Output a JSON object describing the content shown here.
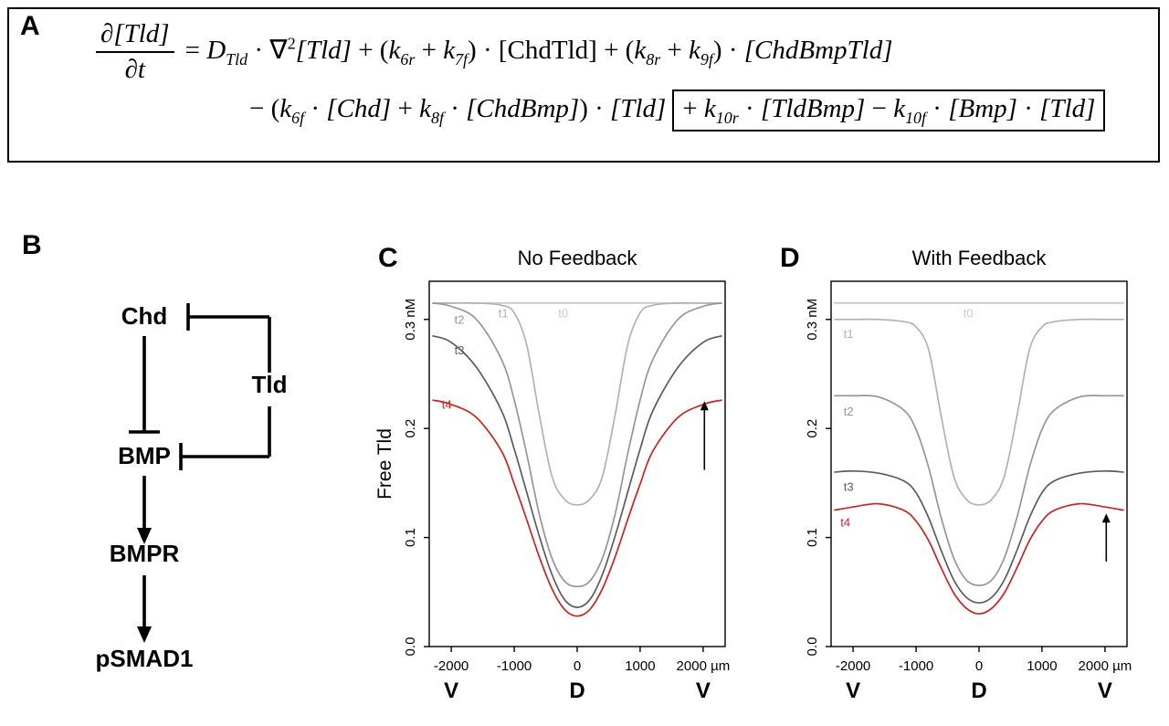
{
  "panels": {
    "a": {
      "label": "A",
      "equation": {
        "frac_num": "∂[Tld]",
        "frac_den": "∂t",
        "line1": [
          {
            "t": "= ",
            "i": false
          },
          {
            "t": "D",
            "sub": "Tld",
            "i": true
          },
          {
            "t": " · ∇",
            "sup": "2",
            "i": false
          },
          {
            "t": "[Tld]",
            "i": true
          },
          {
            "t": " + (",
            "i": false
          },
          {
            "t": "k",
            "sub": "6r",
            "i": true
          },
          {
            "t": " + ",
            "i": false
          },
          {
            "t": "k",
            "sub": "7f",
            "i": true
          },
          {
            "t": ") · ",
            "i": false
          },
          {
            "t": "[ChdTld]",
            "i": false
          },
          {
            "t": " + (",
            "i": false
          },
          {
            "t": "k",
            "sub": "8r",
            "i": true
          },
          {
            "t": " + ",
            "i": false
          },
          {
            "t": "k",
            "sub": "9f",
            "i": true
          },
          {
            "t": ") · ",
            "i": false
          },
          {
            "t": "[ChdBmpTld]",
            "i": true
          }
        ],
        "line2_prefix": [
          {
            "t": "− (",
            "i": false
          },
          {
            "t": "k",
            "sub": "6f",
            "i": true
          },
          {
            "t": " · ",
            "i": false
          },
          {
            "t": "[Chd]",
            "i": true
          },
          {
            "t": " + ",
            "i": false
          },
          {
            "t": "k",
            "sub": "8f",
            "i": true
          },
          {
            "t": " · ",
            "i": false
          },
          {
            "t": "[ChdBmp]",
            "i": true
          },
          {
            "t": ") · ",
            "i": false
          },
          {
            "t": "[Tld]",
            "i": true
          }
        ],
        "line2_boxed": [
          {
            "t": "+ ",
            "i": false
          },
          {
            "t": "k",
            "sub": "10r",
            "i": true
          },
          {
            "t": " · ",
            "i": false
          },
          {
            "t": "[TldBmp]",
            "i": true
          },
          {
            "t": " − ",
            "i": false
          },
          {
            "t": "k",
            "sub": "10f",
            "i": true
          },
          {
            "t": " · ",
            "i": false
          },
          {
            "t": "[Bmp]",
            "i": true
          },
          {
            "t": " · ",
            "i": false
          },
          {
            "t": "[Tld]",
            "i": true
          }
        ]
      }
    },
    "b": {
      "label": "B",
      "nodes": {
        "chd": "Chd",
        "tld": "Tld",
        "bmp": "BMP",
        "bmpr": "BMPR",
        "psmad1": "pSMAD1"
      }
    }
  },
  "chart_data": [
    {
      "id": "C",
      "type": "line",
      "panel_label": "C",
      "title": "No Feedback",
      "ylabel": "Free Tld",
      "xlabel": "",
      "grid": false,
      "legend_position": "inline-curve-labels",
      "xlim": [
        -2350,
        2350
      ],
      "ylim": [
        0,
        0.335
      ],
      "x_ticks": [
        {
          "v": -2000,
          "label": "-2000"
        },
        {
          "v": -1000,
          "label": "-1000"
        },
        {
          "v": 0,
          "label": "0"
        },
        {
          "v": 1000,
          "label": "1000"
        },
        {
          "v": 2000,
          "label": "2000 µm"
        }
      ],
      "y_ticks": [
        {
          "v": 0.0,
          "label": "0.0"
        },
        {
          "v": 0.1,
          "label": "0.1"
        },
        {
          "v": 0.2,
          "label": "0.2"
        },
        {
          "v": 0.3,
          "label": "0.3 nM"
        }
      ],
      "axis_letters": [
        {
          "v": -2000,
          "label": "V"
        },
        {
          "v": 0,
          "label": "D"
        },
        {
          "v": 2000,
          "label": "V"
        }
      ],
      "x": [
        -2300,
        -2000,
        -1600,
        -1200,
        -1000,
        -800,
        -600,
        -400,
        -200,
        0,
        200,
        400,
        600,
        800,
        1000,
        1200,
        1600,
        2000,
        2300
      ],
      "series": [
        {
          "name": "t0",
          "color": "#c9c9c9",
          "label_x": -300,
          "label_y": 0.302,
          "values": [
            0.315,
            0.315,
            0.315,
            0.315,
            0.315,
            0.315,
            0.315,
            0.315,
            0.315,
            0.315,
            0.315,
            0.315,
            0.315,
            0.315,
            0.315,
            0.315,
            0.315,
            0.315,
            0.315
          ]
        },
        {
          "name": "t1",
          "color": "#b2b2b2",
          "label_x": -1250,
          "label_y": 0.302,
          "values": [
            0.315,
            0.315,
            0.315,
            0.313,
            0.306,
            0.276,
            0.212,
            0.156,
            0.135,
            0.13,
            0.135,
            0.156,
            0.212,
            0.276,
            0.306,
            0.313,
            0.315,
            0.315,
            0.315
          ]
        },
        {
          "name": "t2",
          "color": "#969696",
          "label_x": -1950,
          "label_y": 0.296,
          "values": [
            0.315,
            0.312,
            0.3,
            0.263,
            0.226,
            0.176,
            0.121,
            0.081,
            0.06,
            0.055,
            0.06,
            0.081,
            0.121,
            0.176,
            0.226,
            0.263,
            0.3,
            0.312,
            0.315
          ]
        },
        {
          "name": "t3",
          "color": "#5c5c5c",
          "label_x": -1950,
          "label_y": 0.268,
          "values": [
            0.285,
            0.279,
            0.256,
            0.216,
            0.181,
            0.141,
            0.101,
            0.066,
            0.043,
            0.036,
            0.043,
            0.066,
            0.101,
            0.141,
            0.181,
            0.216,
            0.256,
            0.279,
            0.285
          ]
        },
        {
          "name": "t4",
          "color": "#cc2222",
          "label_x": -2150,
          "label_y": 0.218,
          "values": [
            0.226,
            0.222,
            0.21,
            0.179,
            0.149,
            0.116,
            0.082,
            0.053,
            0.034,
            0.028,
            0.034,
            0.053,
            0.082,
            0.116,
            0.149,
            0.179,
            0.21,
            0.222,
            0.226
          ]
        }
      ],
      "arrow": {
        "x": 2020,
        "y_from": 0.162,
        "y_to": 0.225
      }
    },
    {
      "id": "D",
      "type": "line",
      "panel_label": "D",
      "title": "With Feedback",
      "ylabel": "",
      "xlabel": "",
      "grid": false,
      "legend_position": "inline-curve-labels",
      "xlim": [
        -2350,
        2350
      ],
      "ylim": [
        0,
        0.335
      ],
      "x_ticks": [
        {
          "v": -2000,
          "label": "-2000"
        },
        {
          "v": -1000,
          "label": "-1000"
        },
        {
          "v": 0,
          "label": "0"
        },
        {
          "v": 1000,
          "label": "1000"
        },
        {
          "v": 2000,
          "label": "2000 µm"
        }
      ],
      "y_ticks": [
        {
          "v": 0.0,
          "label": "0.0"
        },
        {
          "v": 0.1,
          "label": "0.1"
        },
        {
          "v": 0.2,
          "label": "0.2"
        },
        {
          "v": 0.3,
          "label": "0.3 nM"
        }
      ],
      "axis_letters": [
        {
          "v": -2000,
          "label": "V"
        },
        {
          "v": 0,
          "label": "D"
        },
        {
          "v": 2000,
          "label": "V"
        }
      ],
      "x": [
        -2300,
        -2000,
        -1600,
        -1200,
        -1000,
        -800,
        -600,
        -400,
        -200,
        0,
        200,
        400,
        600,
        800,
        1000,
        1200,
        1600,
        2000,
        2300
      ],
      "series": [
        {
          "name": "t0",
          "color": "#c9c9c9",
          "label_x": -250,
          "label_y": 0.302,
          "values": [
            0.315,
            0.315,
            0.315,
            0.315,
            0.315,
            0.315,
            0.315,
            0.315,
            0.315,
            0.315,
            0.315,
            0.315,
            0.315,
            0.315,
            0.315,
            0.315,
            0.315,
            0.315,
            0.315
          ]
        },
        {
          "name": "t1",
          "color": "#b2b2b2",
          "label_x": -2150,
          "label_y": 0.283,
          "values": [
            0.3,
            0.3,
            0.3,
            0.298,
            0.293,
            0.272,
            0.211,
            0.156,
            0.135,
            0.13,
            0.135,
            0.156,
            0.211,
            0.272,
            0.293,
            0.298,
            0.3,
            0.3,
            0.3
          ]
        },
        {
          "name": "t2",
          "color": "#969696",
          "label_x": -2150,
          "label_y": 0.212,
          "values": [
            0.23,
            0.23,
            0.229,
            0.217,
            0.199,
            0.164,
            0.118,
            0.081,
            0.061,
            0.056,
            0.061,
            0.081,
            0.118,
            0.164,
            0.199,
            0.217,
            0.229,
            0.23,
            0.23
          ]
        },
        {
          "name": "t3",
          "color": "#5c5c5c",
          "label_x": -2150,
          "label_y": 0.143,
          "values": [
            0.16,
            0.161,
            0.159,
            0.152,
            0.141,
            0.118,
            0.088,
            0.061,
            0.045,
            0.04,
            0.045,
            0.061,
            0.088,
            0.118,
            0.141,
            0.152,
            0.159,
            0.161,
            0.16
          ]
        },
        {
          "name": "t4",
          "color": "#cc2222",
          "label_x": -2200,
          "label_y": 0.11,
          "values": [
            0.125,
            0.128,
            0.131,
            0.125,
            0.115,
            0.097,
            0.072,
            0.049,
            0.035,
            0.03,
            0.035,
            0.049,
            0.072,
            0.097,
            0.115,
            0.125,
            0.131,
            0.128,
            0.125
          ]
        }
      ],
      "arrow": {
        "x": 2020,
        "y_from": 0.078,
        "y_to": 0.122
      }
    }
  ]
}
